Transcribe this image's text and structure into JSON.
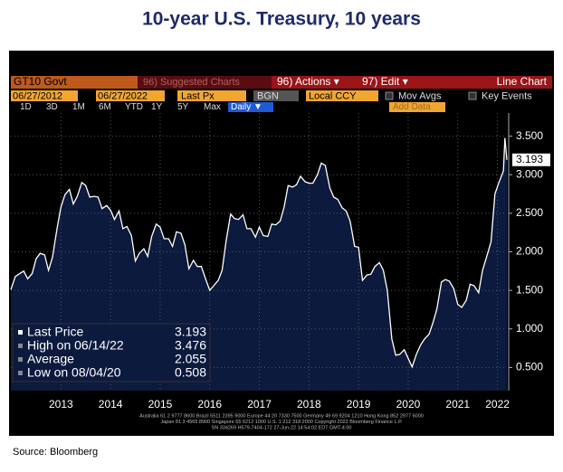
{
  "chart_data": {
    "type": "line",
    "title": "10-year U.S. Treasury, 10 years",
    "source": "Source: Bloomberg",
    "terminal": {
      "ticker": "GT10 Govt",
      "suggested": "96) Suggested Charts",
      "actions": "96) Actions ▾",
      "edit": "97) Edit ▾",
      "chart_kind": "Line Chart",
      "start_date": "06/27/2012",
      "end_date": "06/27/2022",
      "field": "Last Px",
      "source_code": "BGN",
      "currency": "Local CCY",
      "mov_avgs": "Mov Avgs",
      "key_events": "Key Events",
      "periods": [
        "1D",
        "3D",
        "1M",
        "6M",
        "YTD",
        "1Y",
        "5Y",
        "Max"
      ],
      "frequency": "Daily ▼",
      "add_data": "Add Data",
      "footer": [
        "Australia 61 2 9777 8600 Brazil 5511 2395 9000 Europe 44 20 7330 7500 Germany 49 69 9204 1210 Hong Kong 852 2977 6000",
        "Japan 81 3 4565 8900        Singapore 65 6212 1000        U.S. 1 212 318 2000        Copyright 2022 Bloomberg Finance L.P.",
        "SN 334269 H579-7404-172 27-Jun-22 14:54:02 EDT  GMT-4:00"
      ]
    },
    "stats": [
      {
        "label": "Last Price",
        "value": 3.193
      },
      {
        "label": "High on 06/14/22",
        "value": 3.476
      },
      {
        "label": "Average",
        "value": 2.055
      },
      {
        "label": "Low on 08/04/20",
        "value": 0.508
      }
    ],
    "series": [
      {
        "name": "GT10 Govt",
        "color": "#ffffff",
        "fill": "#0c1a3e",
        "x": [
          2012.49,
          2012.58,
          2012.67,
          2012.75,
          2012.83,
          2012.92,
          2013.0,
          2013.08,
          2013.17,
          2013.25,
          2013.33,
          2013.42,
          2013.5,
          2013.58,
          2013.67,
          2013.75,
          2013.83,
          2013.92,
          2014.0,
          2014.08,
          2014.17,
          2014.25,
          2014.33,
          2014.42,
          2014.5,
          2014.58,
          2014.67,
          2014.75,
          2014.83,
          2014.92,
          2015.0,
          2015.08,
          2015.17,
          2015.25,
          2015.33,
          2015.42,
          2015.5,
          2015.58,
          2015.67,
          2015.75,
          2015.83,
          2015.92,
          2016.0,
          2016.08,
          2016.17,
          2016.25,
          2016.33,
          2016.42,
          2016.5,
          2016.58,
          2016.67,
          2016.75,
          2016.83,
          2016.92,
          2017.0,
          2017.08,
          2017.17,
          2017.25,
          2017.33,
          2017.42,
          2017.5,
          2017.58,
          2017.67,
          2017.75,
          2017.83,
          2017.92,
          2018.0,
          2018.08,
          2018.17,
          2018.25,
          2018.33,
          2018.42,
          2018.5,
          2018.58,
          2018.67,
          2018.75,
          2018.83,
          2018.92,
          2019.0,
          2019.08,
          2019.17,
          2019.25,
          2019.33,
          2019.42,
          2019.5,
          2019.58,
          2019.67,
          2019.75,
          2019.83,
          2019.92,
          2020.0,
          2020.08,
          2020.17,
          2020.25,
          2020.33,
          2020.42,
          2020.5,
          2020.58,
          2020.67,
          2020.75,
          2020.83,
          2020.92,
          2021.0,
          2021.08,
          2021.17,
          2021.25,
          2021.33,
          2021.42,
          2021.5,
          2021.58,
          2021.67,
          2021.75,
          2021.83,
          2021.92,
          2022.0,
          2022.08,
          2022.17,
          2022.25,
          2022.33,
          2022.42,
          2022.45,
          2022.49
        ],
        "values": [
          1.51,
          1.68,
          1.72,
          1.75,
          1.65,
          1.72,
          1.91,
          1.98,
          1.96,
          1.76,
          1.93,
          2.3,
          2.58,
          2.74,
          2.81,
          2.62,
          2.72,
          2.9,
          2.86,
          2.71,
          2.72,
          2.71,
          2.56,
          2.6,
          2.54,
          2.42,
          2.53,
          2.3,
          2.33,
          2.21,
          1.88,
          1.98,
          2.04,
          1.94,
          2.2,
          2.36,
          2.32,
          2.17,
          2.17,
          2.07,
          2.26,
          2.24,
          2.09,
          1.78,
          1.89,
          1.81,
          1.81,
          1.64,
          1.5,
          1.56,
          1.63,
          1.76,
          2.14,
          2.49,
          2.43,
          2.42,
          2.48,
          2.3,
          2.3,
          2.19,
          2.32,
          2.21,
          2.2,
          2.36,
          2.35,
          2.4,
          2.58,
          2.86,
          2.84,
          2.87,
          2.98,
          2.91,
          2.89,
          2.89,
          3.0,
          3.15,
          3.12,
          2.83,
          2.71,
          2.68,
          2.57,
          2.53,
          2.4,
          2.07,
          2.06,
          1.63,
          1.7,
          1.71,
          1.81,
          1.86,
          1.76,
          1.5,
          0.87,
          0.66,
          0.67,
          0.73,
          0.62,
          0.508,
          0.68,
          0.79,
          0.87,
          0.93,
          1.08,
          1.26,
          1.61,
          1.64,
          1.62,
          1.52,
          1.32,
          1.28,
          1.37,
          1.58,
          1.56,
          1.47,
          1.76,
          1.93,
          2.13,
          2.75,
          2.9,
          3.05,
          3.476,
          3.193
        ]
      }
    ],
    "xlim": [
      2012.49,
      2022.49
    ],
    "xticks": [
      {
        "value": 2013.5,
        "label": "2013"
      },
      {
        "value": 2014.5,
        "label": "2014"
      },
      {
        "value": 2015.5,
        "label": "2015"
      },
      {
        "value": 2016.5,
        "label": "2016"
      },
      {
        "value": 2017.5,
        "label": "2017"
      },
      {
        "value": 2018.5,
        "label": "2018"
      },
      {
        "value": 2019.5,
        "label": "2019"
      },
      {
        "value": 2020.5,
        "label": "2020"
      },
      {
        "value": 2021.5,
        "label": "2021"
      },
      {
        "value": 2022.3,
        "label": "2022"
      }
    ],
    "ylim": [
      0.2,
      3.8
    ],
    "yticks": [
      {
        "value": 0.5,
        "label": "0.500"
      },
      {
        "value": 1.0,
        "label": "1.000"
      },
      {
        "value": 1.5,
        "label": "1.500"
      },
      {
        "value": 2.0,
        "label": "2.000"
      },
      {
        "value": 2.5,
        "label": "2.500"
      },
      {
        "value": 3.0,
        "label": "3.000"
      },
      {
        "value": 3.5,
        "label": "3.500"
      }
    ],
    "grid": true
  }
}
